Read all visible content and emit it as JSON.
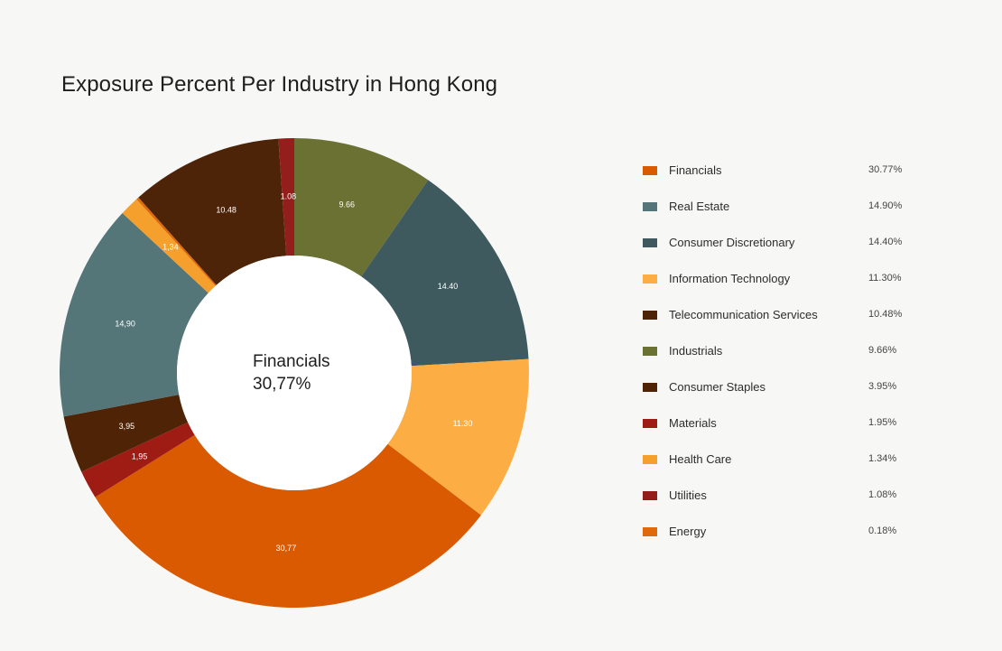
{
  "title": "Exposure Percent Per Industry in Hong Kong",
  "center": {
    "name": "Financials",
    "value": "30,77%"
  },
  "chart_data": {
    "type": "pie",
    "title": "Exposure Percent Per Industry in Hong Kong",
    "donut": true,
    "legend_placement": "right",
    "slices": [
      {
        "name": "Industrials",
        "value": 9.66,
        "label": "9.66",
        "color": "#6a7133"
      },
      {
        "name": "Consumer Discretionary",
        "value": 14.4,
        "label": "14.40",
        "color": "#3e5a5f"
      },
      {
        "name": "Information Technology",
        "value": 11.3,
        "label": "11.30",
        "color": "#fcae45"
      },
      {
        "name": "Financials",
        "value": 30.77,
        "label": "30,77",
        "color": "#d95a00"
      },
      {
        "name": "Materials",
        "value": 1.95,
        "label": "1,95",
        "color": "#9f1c14"
      },
      {
        "name": "Consumer Staples",
        "value": 3.95,
        "label": "3,95",
        "color": "#4e2306"
      },
      {
        "name": "Real Estate",
        "value": 14.9,
        "label": "14,90",
        "color": "#557679"
      },
      {
        "name": "Health Care",
        "value": 1.34,
        "label": "1,34",
        "color": "#f5a02c"
      },
      {
        "name": "Energy",
        "value": 0.18,
        "label": "",
        "color": "#e06a0a"
      },
      {
        "name": "Telecommunication Services",
        "value": 10.48,
        "label": "10.48",
        "color": "#4e2409"
      },
      {
        "name": "Utilities",
        "value": 1.08,
        "label": "1.08",
        "color": "#931e1c"
      }
    ]
  },
  "legend": [
    {
      "name": "Financials",
      "value": "30.77%",
      "color": "#d95a00"
    },
    {
      "name": "Real Estate",
      "value": "14.90%",
      "color": "#557679"
    },
    {
      "name": "Consumer Discretionary",
      "value": "14.40%",
      "color": "#3e5a5f"
    },
    {
      "name": "Information Technology",
      "value": "11.30%",
      "color": "#fcae45"
    },
    {
      "name": "Telecommunication Services",
      "value": "10.48%",
      "color": "#4e2409"
    },
    {
      "name": "Industrials",
      "value": "9.66%",
      "color": "#6a7133"
    },
    {
      "name": "Consumer Staples",
      "value": "3.95%",
      "color": "#4e2306"
    },
    {
      "name": "Materials",
      "value": "1.95%",
      "color": "#9f1c14"
    },
    {
      "name": "Health Care",
      "value": "1.34%",
      "color": "#f5a02c"
    },
    {
      "name": "Utilities",
      "value": "1.08%",
      "color": "#931e1c"
    },
    {
      "name": "Energy",
      "value": "0.18%",
      "color": "#e06a0a"
    }
  ]
}
